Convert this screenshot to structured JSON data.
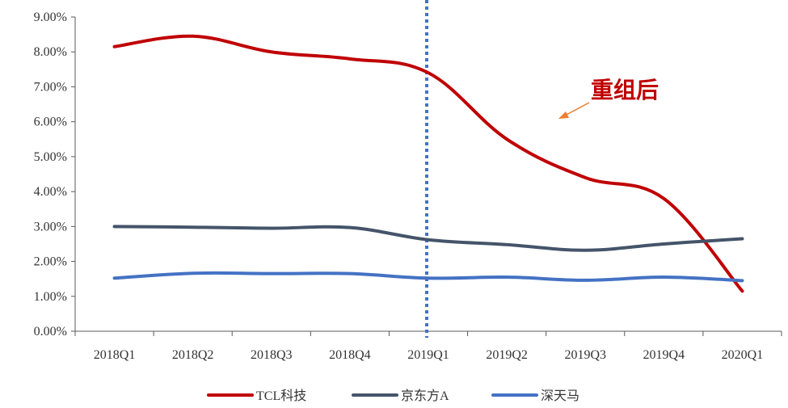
{
  "chart_data": {
    "type": "line",
    "categories": [
      "2018Q1",
      "2018Q2",
      "2018Q3",
      "2018Q4",
      "2019Q1",
      "2019Q2",
      "2019Q3",
      "2019Q4",
      "2020Q1"
    ],
    "ylim": [
      0,
      9
    ],
    "yticks": [
      "0.00%",
      "1.00%",
      "2.00%",
      "3.00%",
      "4.00%",
      "5.00%",
      "6.00%",
      "7.00%",
      "8.00%",
      "9.00%"
    ],
    "series": [
      {
        "name": "TCL科技",
        "color": "#c00000",
        "values": [
          8.15,
          8.45,
          8.0,
          7.8,
          7.4,
          5.5,
          4.4,
          3.8,
          1.15
        ]
      },
      {
        "name": "京东方A",
        "color": "#44546a",
        "values": [
          3.0,
          2.98,
          2.95,
          2.97,
          2.62,
          2.48,
          2.32,
          2.5,
          2.65
        ]
      },
      {
        "name": "深天马",
        "color": "#4472c4",
        "values": [
          1.52,
          1.66,
          1.65,
          1.65,
          1.52,
          1.55,
          1.46,
          1.55,
          1.45
        ]
      }
    ],
    "marker_line": {
      "category": "2019Q1",
      "color": "#4472c4",
      "style": "dotted"
    },
    "annotation": {
      "text": "重组后",
      "color": "#c00000",
      "arrow_color": "#ed7d31"
    },
    "legend_position": "bottom",
    "grid": false
  }
}
